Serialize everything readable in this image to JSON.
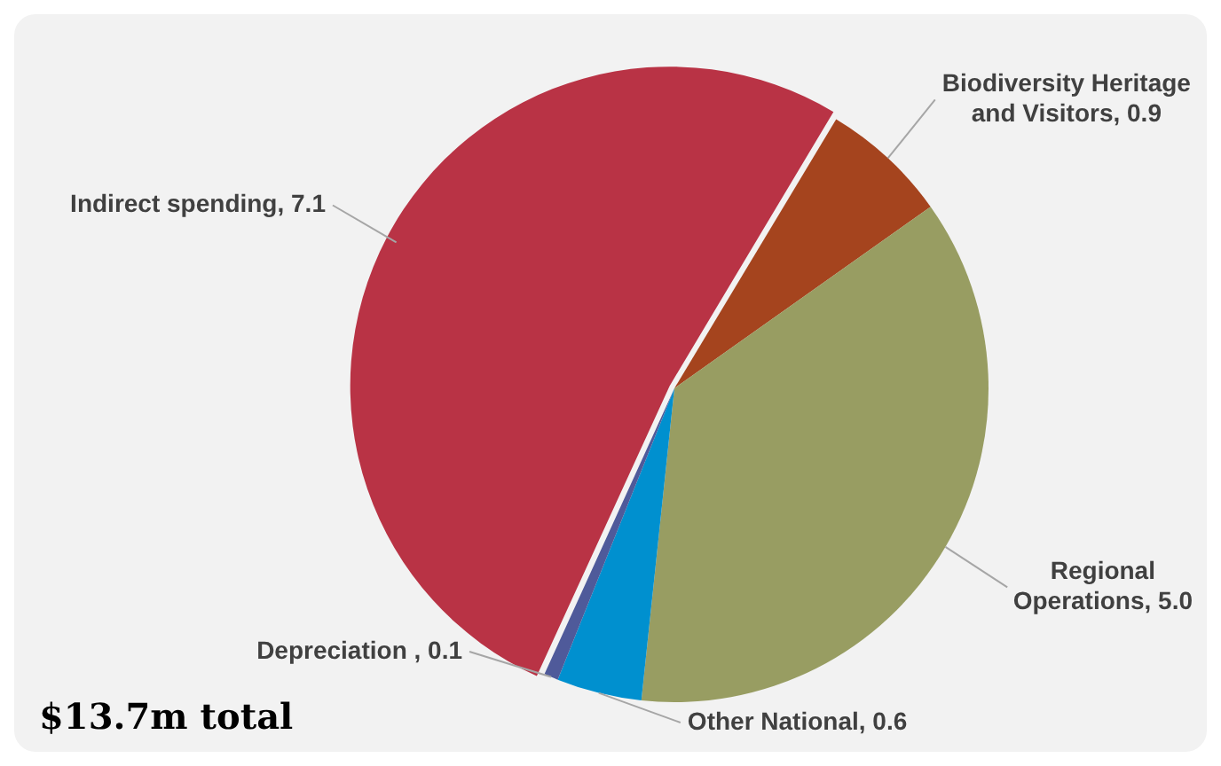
{
  "chart_data": {
    "type": "pie",
    "categories": [
      "Biodiversity Heritage and Visitors",
      "Regional Operations",
      "Other National",
      "Depreciation ",
      "Indirect spending"
    ],
    "values": [
      0.9,
      5.0,
      0.6,
      0.1,
      7.1
    ],
    "value_labels": [
      "0.9",
      "5.0",
      "0.6",
      "0.1",
      "7.1"
    ],
    "colors": [
      "#a5441e",
      "#989d62",
      "#0090cf",
      "#4f5a9a",
      "#b93345"
    ],
    "annotations": [
      "$13.7m total"
    ],
    "legend": false
  }
}
